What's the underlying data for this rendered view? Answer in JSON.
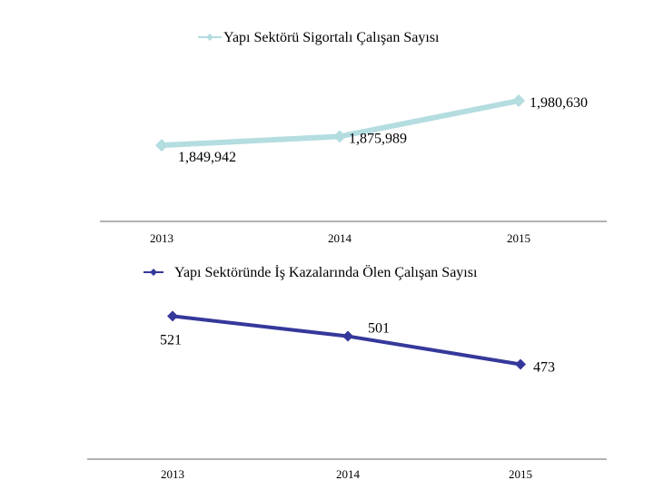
{
  "chart_data": [
    {
      "type": "line",
      "categories": [
        "2013",
        "2014",
        "2015"
      ],
      "series": [
        {
          "name": "Yapı Sektörü Sigortalı Çalışan Sayısı",
          "values": [
            1849942,
            1875989,
            1980630
          ],
          "color": "#b4dde0",
          "marker": "diamond"
        }
      ],
      "data_labels": [
        "1,849,942",
        "1,875,989",
        "1,980,630"
      ],
      "legend": "top-center",
      "grid": false,
      "ylim": [
        1760000,
        2010000
      ]
    },
    {
      "type": "line",
      "categories": [
        "2013",
        "2014",
        "2015"
      ],
      "series": [
        {
          "name": "Yapı Sektöründe İş Kazalarında Ölen Çalışan Sayısı",
          "values": [
            521,
            501,
            473
          ],
          "color": "#35389a",
          "marker": "diamond"
        }
      ],
      "data_labels": [
        "521",
        "501",
        "473"
      ],
      "legend": "top-center",
      "grid": false,
      "ylim": [
        440,
        525
      ]
    }
  ]
}
